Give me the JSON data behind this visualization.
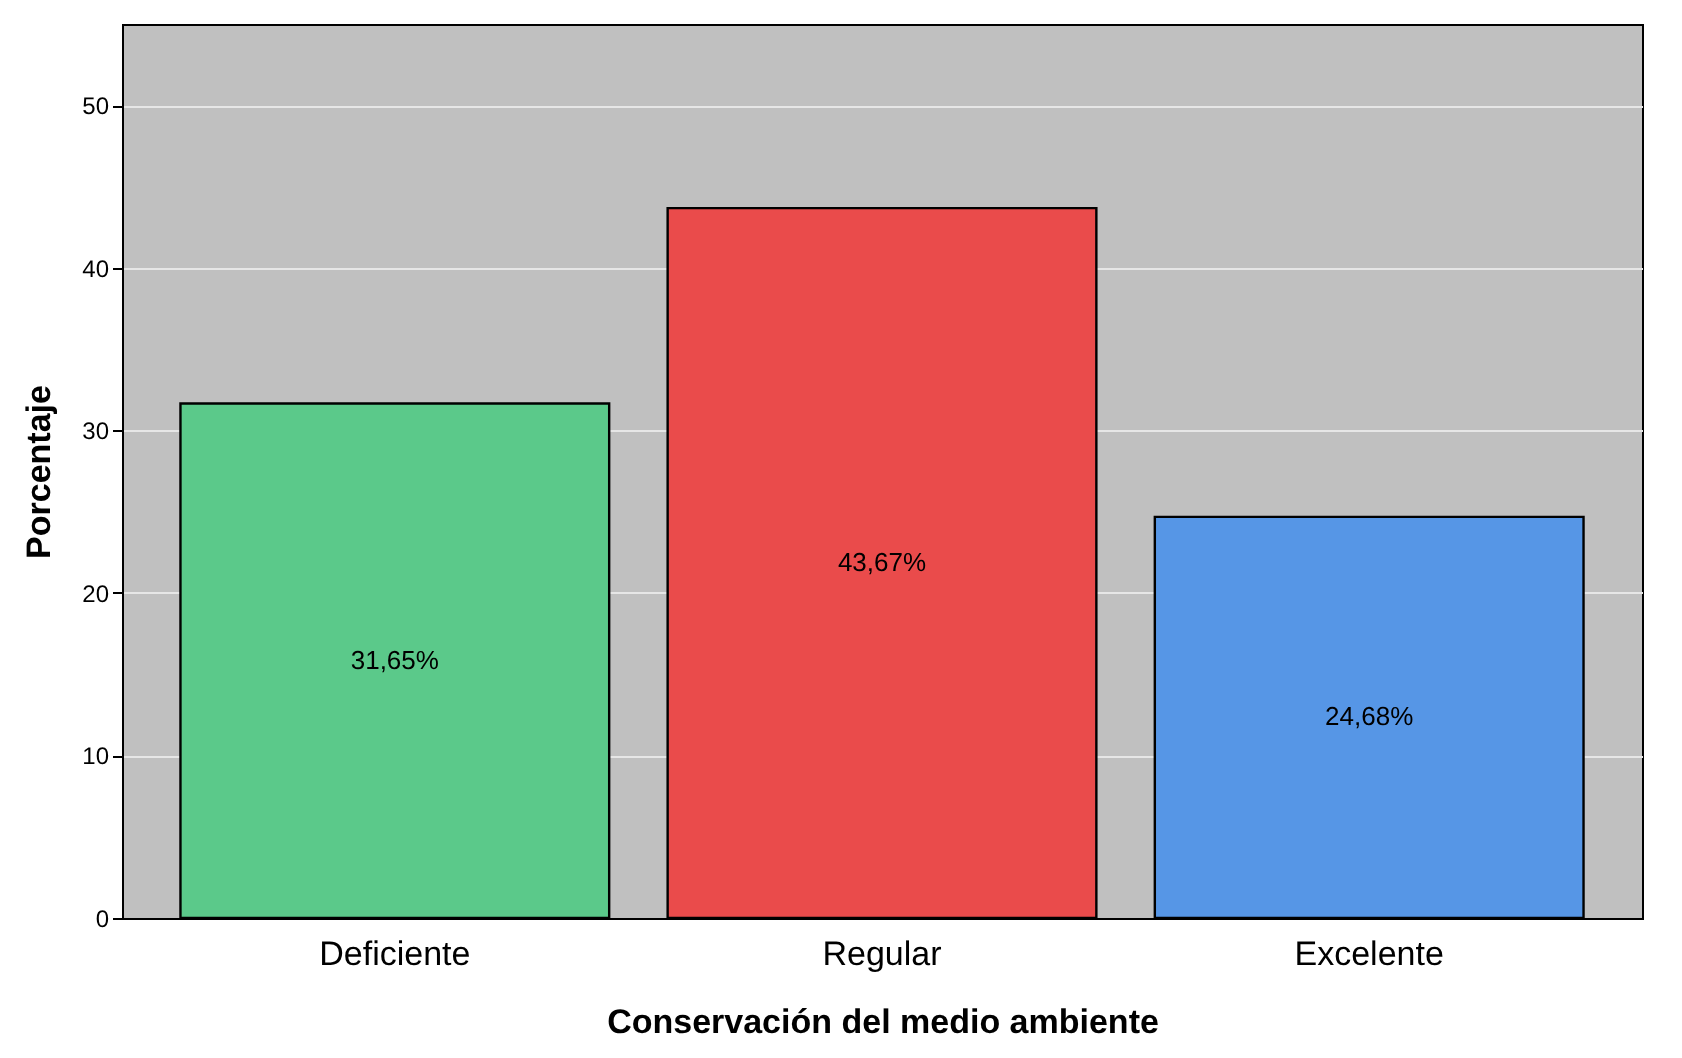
{
  "chart_data": {
    "type": "bar",
    "xlabel": "Conservación del medio ambiente",
    "ylabel": "Porcentaje",
    "categories": [
      "Deficiente",
      "Regular",
      "Excelente"
    ],
    "values": [
      31.65,
      43.67,
      24.68
    ],
    "colors": [
      "#5bc98a",
      "#ea4b4b",
      "#5696e6"
    ],
    "value_labels": [
      "31,65%",
      "43,67%",
      "24,68%"
    ],
    "ylim": [
      0,
      55
    ],
    "yticks": [
      0,
      10,
      20,
      30,
      40,
      50
    ],
    "grid": "y"
  }
}
